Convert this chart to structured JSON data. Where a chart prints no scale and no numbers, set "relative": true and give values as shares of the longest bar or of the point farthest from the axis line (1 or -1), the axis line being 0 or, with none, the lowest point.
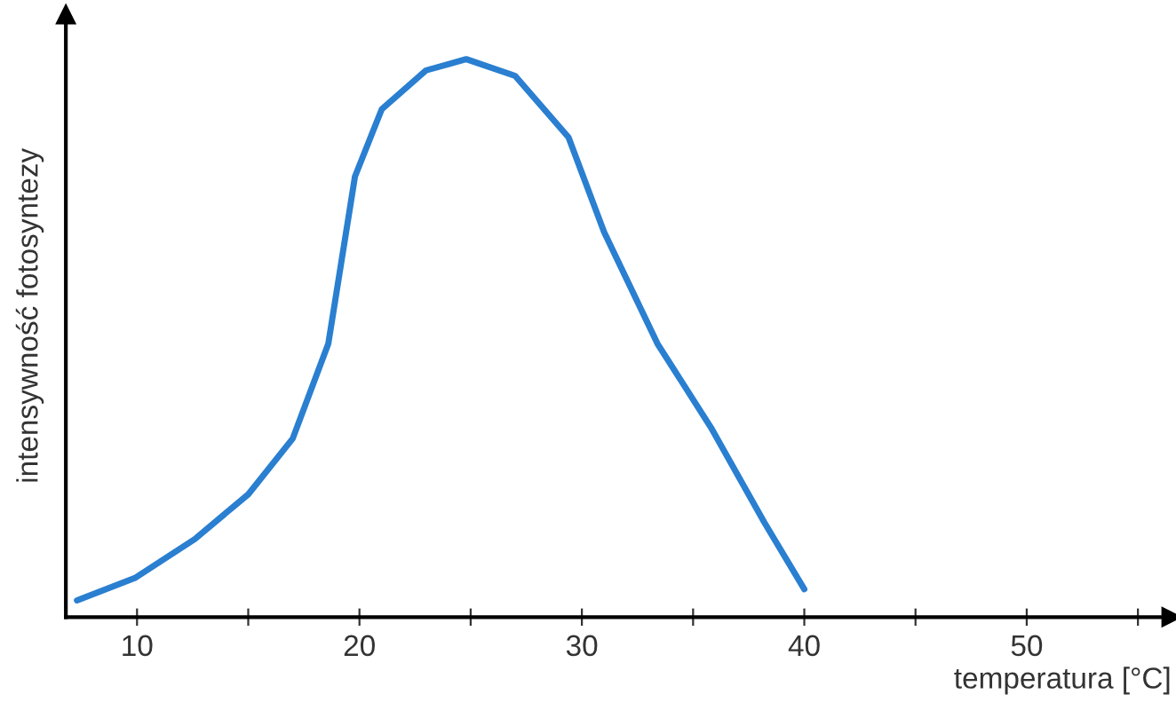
{
  "chart_data": {
    "type": "line",
    "relative": true,
    "xlabel": "temperatura [°C]",
    "ylabel": "intensywność fotosyntezy",
    "xlim": [
      6.8,
      56.5
    ],
    "xticks": [
      10,
      {
        "value": 15,
        "label": null
      },
      20,
      {
        "value": 25,
        "label": null
      },
      30,
      {
        "value": 35,
        "label": null
      },
      40,
      {
        "value": 45,
        "label": null
      },
      50,
      {
        "value": 55,
        "label": null
      }
    ],
    "grid": false,
    "legend": false,
    "marker": "none",
    "line_style": "solid",
    "series": [
      {
        "color": "#2a7fd0",
        "x": [
          7.3,
          9.9,
          12.6,
          15.0,
          17.0,
          18.6,
          19.8,
          21.0,
          23.0,
          24.8,
          27.0,
          29.4,
          31.0,
          33.4,
          35.8,
          38.2,
          40.0
        ],
        "values": [
          0.03,
          0.07,
          0.14,
          0.22,
          0.32,
          0.49,
          0.79,
          0.91,
          0.98,
          1.0,
          0.97,
          0.86,
          0.69,
          0.49,
          0.34,
          0.17,
          0.05
        ]
      }
    ]
  }
}
